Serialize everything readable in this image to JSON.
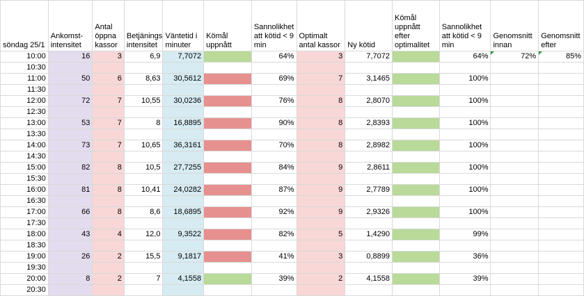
{
  "headers": [
    "söndag 25/1",
    "Ankomst-\nintensitet",
    "Antal\nöppna\nkassor",
    "Betjänings-\nintensitet",
    "Väntetid i\nminuter",
    "Kömål\nuppnått",
    "Sannolikhet\natt kötid < 9\nmin",
    "Optimalt\nantal kassor",
    "Ny kötid",
    "Kömål\nuppnått\nefter\noptimalitet",
    "Sannolikhet\natt kötid < 9\nmin",
    "Genomsnitt\ninnan",
    "Genomsnitt\nefter"
  ],
  "rows": [
    {
      "time": "10:00",
      "ankomst": "16",
      "kassor": "3",
      "betj": "6,9",
      "vantetid": "7,7072",
      "komal": "green",
      "sannolikhet": "64%",
      "optimalt": "3",
      "nykotid": "7,7072",
      "komal2": "green",
      "sannolikhet2": "64%",
      "snitt_innan": "72%",
      "snitt_efter": "85%"
    },
    {
      "time": "10:30"
    },
    {
      "time": "11:00",
      "ankomst": "50",
      "kassor": "6",
      "betj": "8,63",
      "vantetid": "30,5612",
      "komal": "red",
      "sannolikhet": "69%",
      "optimalt": "7",
      "nykotid": "3,1465",
      "komal2": "green",
      "sannolikhet2": "100%"
    },
    {
      "time": "11:30"
    },
    {
      "time": "12:00",
      "ankomst": "72",
      "kassor": "7",
      "betj": "10,55",
      "vantetid": "30,0236",
      "komal": "red",
      "sannolikhet": "76%",
      "optimalt": "8",
      "nykotid": "2,8070",
      "komal2": "green",
      "sannolikhet2": "100%"
    },
    {
      "time": "12:30"
    },
    {
      "time": "13:00",
      "ankomst": "53",
      "kassor": "7",
      "betj": "8",
      "vantetid": "16,8895",
      "komal": "red",
      "sannolikhet": "90%",
      "optimalt": "8",
      "nykotid": "2,8393",
      "komal2": "green",
      "sannolikhet2": "100%"
    },
    {
      "time": "13:30"
    },
    {
      "time": "14:00",
      "ankomst": "73",
      "kassor": "7",
      "betj": "10,65",
      "vantetid": "36,3161",
      "komal": "red",
      "sannolikhet": "70%",
      "optimalt": "8",
      "nykotid": "2,8982",
      "komal2": "green",
      "sannolikhet2": "100%"
    },
    {
      "time": "14:30"
    },
    {
      "time": "15:00",
      "ankomst": "82",
      "kassor": "8",
      "betj": "10,5",
      "vantetid": "27,7255",
      "komal": "red",
      "sannolikhet": "84%",
      "optimalt": "9",
      "nykotid": "2,8611",
      "komal2": "green",
      "sannolikhet2": "100%"
    },
    {
      "time": "15:30"
    },
    {
      "time": "16:00",
      "ankomst": "81",
      "kassor": "8",
      "betj": "10,41",
      "vantetid": "24,0282",
      "komal": "red",
      "sannolikhet": "87%",
      "optimalt": "9",
      "nykotid": "2,7789",
      "komal2": "green",
      "sannolikhet2": "100%"
    },
    {
      "time": "16:30"
    },
    {
      "time": "17:00",
      "ankomst": "66",
      "kassor": "8",
      "betj": "8,6",
      "vantetid": "18,6895",
      "komal": "red",
      "sannolikhet": "92%",
      "optimalt": "9",
      "nykotid": "2,9326",
      "komal2": "green",
      "sannolikhet2": "100%"
    },
    {
      "time": "17:30"
    },
    {
      "time": "18:00",
      "ankomst": "43",
      "kassor": "4",
      "betj": "12,0",
      "vantetid": "9,3522",
      "komal": "red",
      "sannolikhet": "82%",
      "optimalt": "5",
      "nykotid": "1,4290",
      "komal2": "green",
      "sannolikhet2": "99%"
    },
    {
      "time": "18:30"
    },
    {
      "time": "19:00",
      "ankomst": "26",
      "kassor": "2",
      "betj": "15,5",
      "vantetid": "9,1817",
      "komal": "red",
      "sannolikhet": "41%",
      "optimalt": "3",
      "nykotid": "0,8899",
      "komal2": "green",
      "sannolikhet2": "36%"
    },
    {
      "time": "19:30"
    },
    {
      "time": "20:00",
      "ankomst": "8",
      "kassor": "2",
      "betj": "7",
      "vantetid": "4,1558",
      "komal": "green",
      "sannolikhet": "39%",
      "optimalt": "2",
      "nykotid": "4,1558",
      "komal2": "green",
      "sannolikhet2": "39%"
    },
    {
      "time": "20:30"
    }
  ],
  "colors": {
    "purple": "#e3dcee",
    "pink": "#f8d7d6",
    "blue": "#d6ebf2",
    "green": "#b9da99",
    "red": "#e69190"
  }
}
